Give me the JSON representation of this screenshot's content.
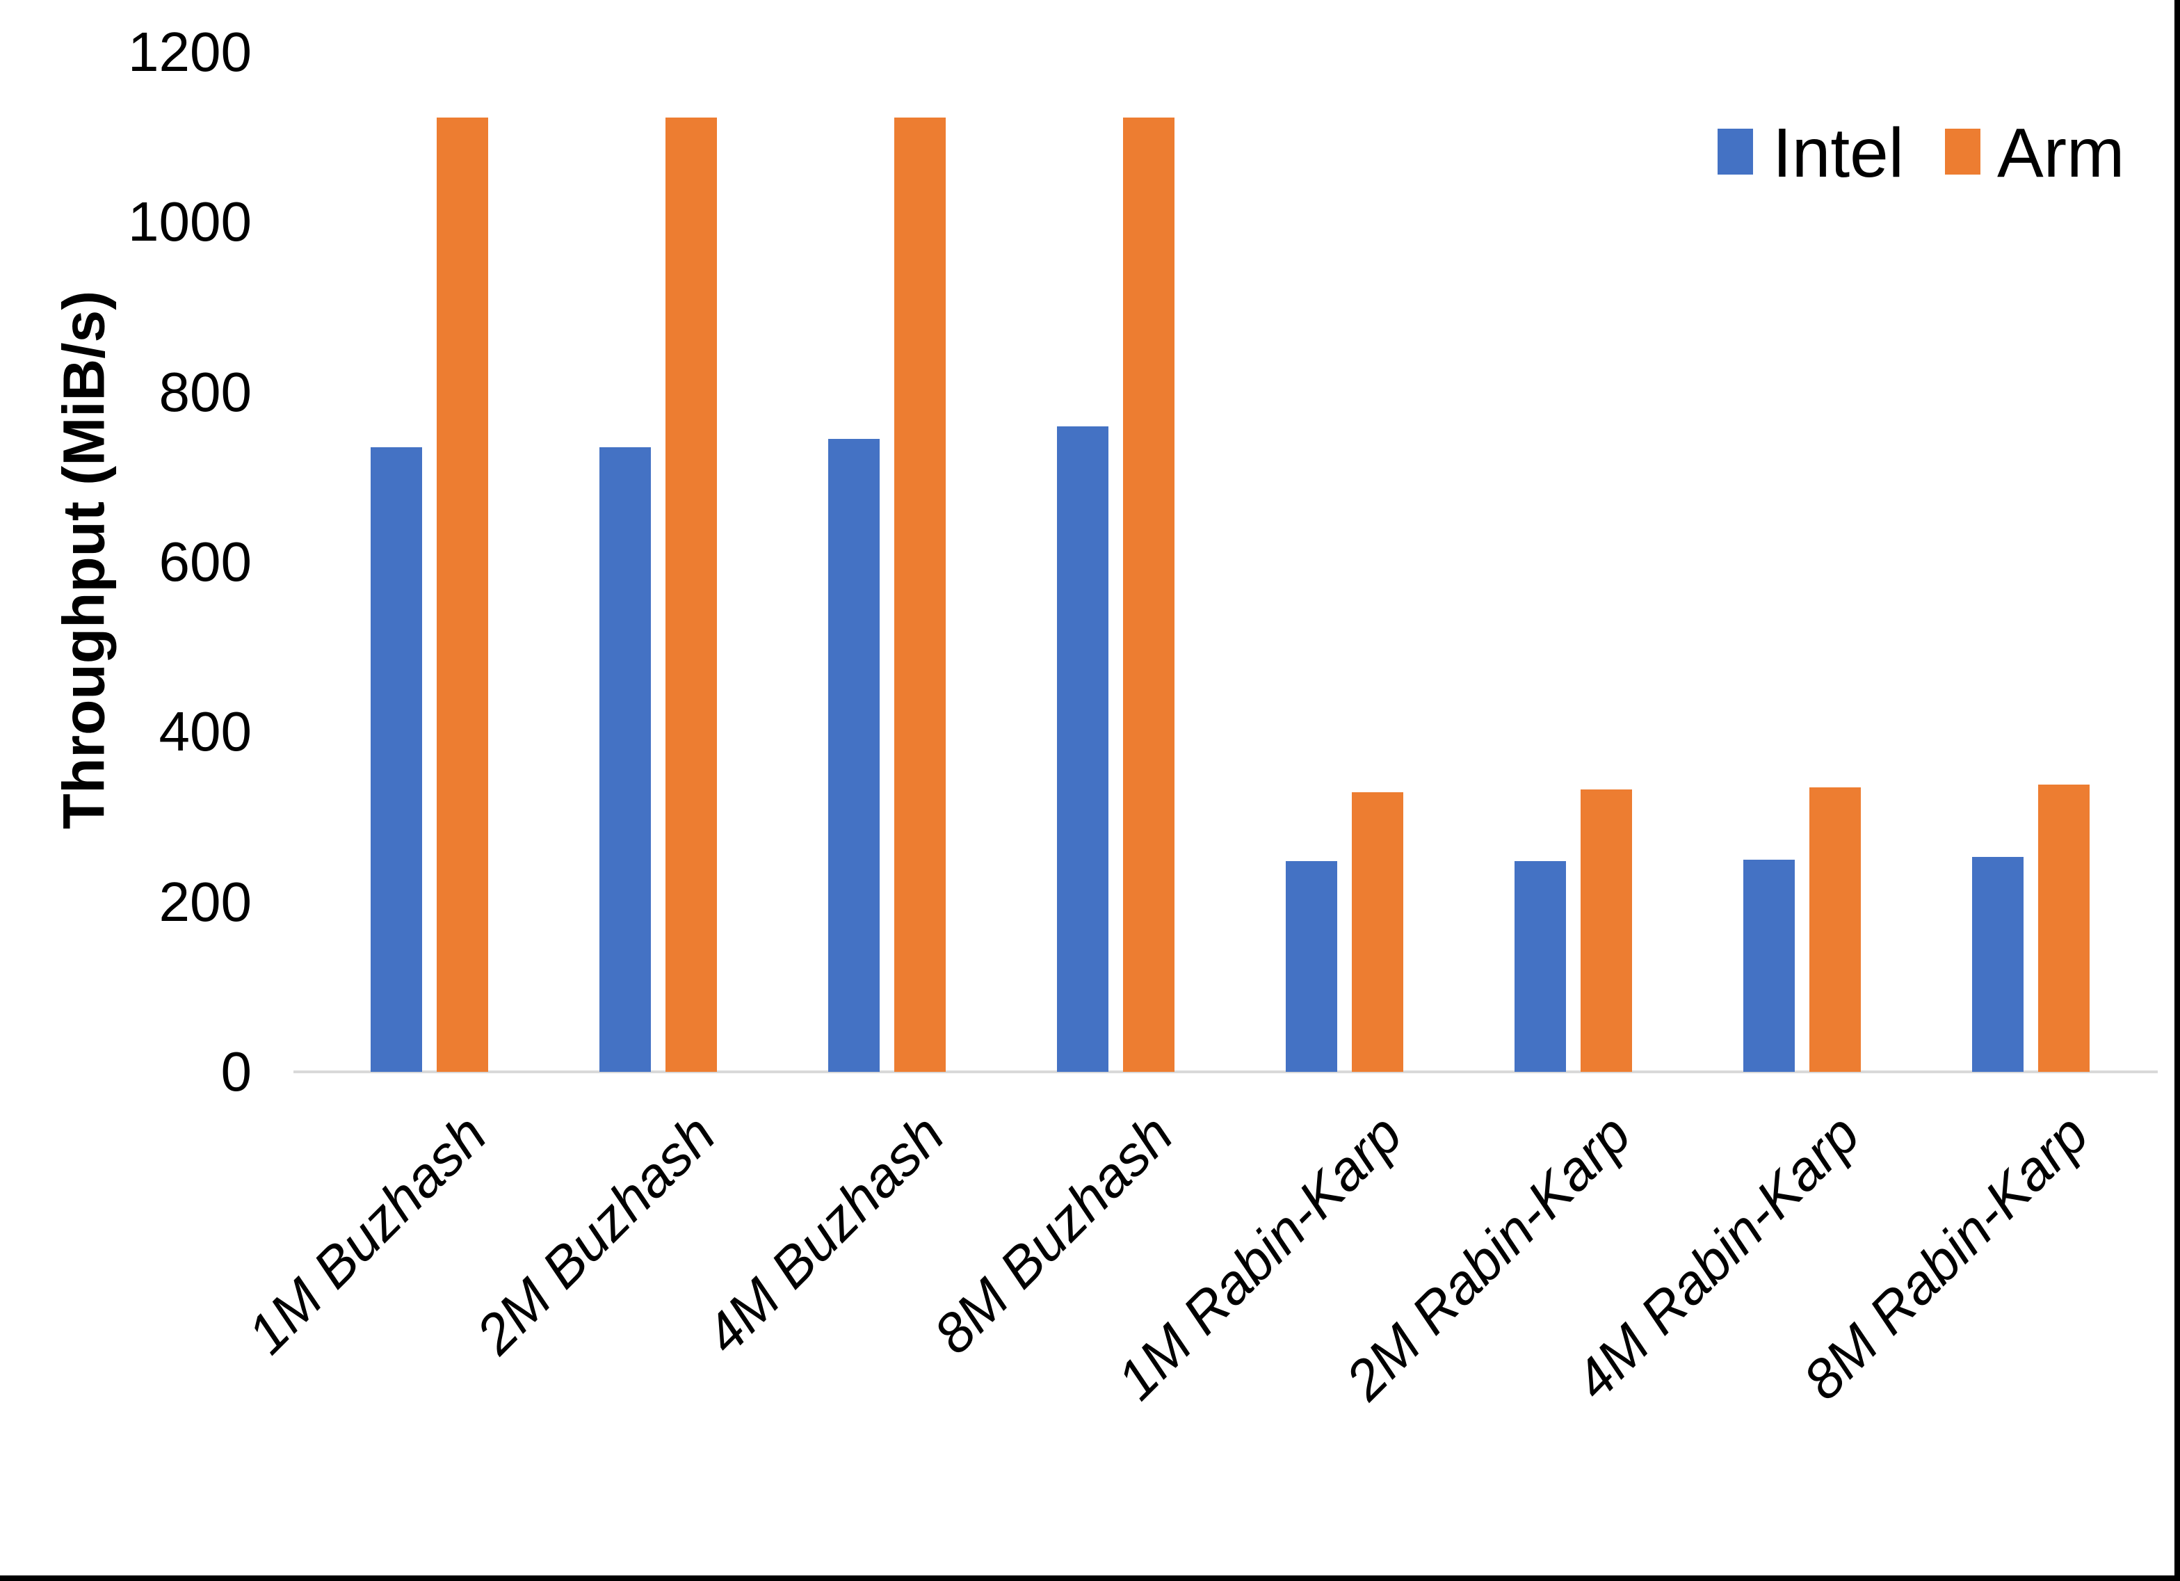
{
  "chart_data": {
    "type": "bar",
    "title": "",
    "xlabel": "",
    "ylabel": "Throughput (MiB/s)",
    "ylim": [
      0,
      1200
    ],
    "yticks": [
      0,
      200,
      400,
      600,
      800,
      1000,
      1200
    ],
    "grid": false,
    "legend_position": "top-right",
    "categories": [
      "1M Buzhash",
      "2M Buzhash",
      "4M Buzhash",
      "8M Buzhash",
      "1M Rabin-Karp",
      "2M Rabin-Karp",
      "4M Rabin-Karp",
      "8M Rabin-Karp"
    ],
    "series": [
      {
        "name": "Intel",
        "color": "#4472C4",
        "values": [
          735,
          735,
          745,
          760,
          248,
          248,
          250,
          253
        ]
      },
      {
        "name": "Arm",
        "color": "#ED7D31",
        "values": [
          1123,
          1123,
          1123,
          1123,
          329,
          332,
          335,
          338
        ]
      }
    ]
  },
  "legend": {
    "items": [
      {
        "label": "Intel",
        "color": "#4472C4"
      },
      {
        "label": "Arm",
        "color": "#ED7D31"
      }
    ]
  },
  "axis": {
    "y_title": "Throughput (MiB/s)",
    "axis_line_color": "#d9d9d9",
    "text_color": "#000000"
  }
}
